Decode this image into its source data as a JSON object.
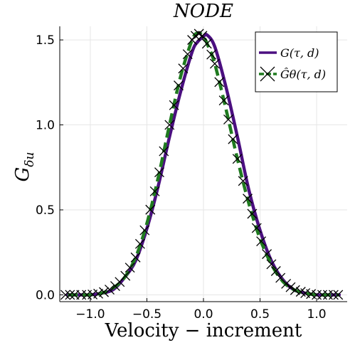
{
  "chart_data": {
    "type": "line",
    "title": "NODE",
    "xlabel": "Velocity − increment",
    "ylabel_main": "G",
    "ylabel_sub": "δu",
    "xlim": [
      -1.27,
      1.27
    ],
    "ylim": [
      -0.04,
      1.58
    ],
    "xticks": [
      -1.0,
      -0.5,
      0.0,
      0.5,
      1.0
    ],
    "xtick_labels": [
      "−1.0",
      "−0.5",
      "0.0",
      "0.5",
      "1.0"
    ],
    "yticks": [
      0.0,
      0.5,
      1.0,
      1.5
    ],
    "ytick_labels": [
      "0.0",
      "0.5",
      "1.0",
      "1.5"
    ],
    "grid": true,
    "legend_position": "top-right",
    "series": [
      {
        "name": "G(τ, d)",
        "color": "#4b0f80",
        "style": "solid",
        "x": [
          -1.2,
          -1.1,
          -1.0,
          -0.9,
          -0.8,
          -0.7,
          -0.6,
          -0.5,
          -0.4,
          -0.3,
          -0.2,
          -0.1,
          -0.05,
          0.0,
          0.03,
          0.1,
          0.2,
          0.3,
          0.4,
          0.5,
          0.6,
          0.7,
          0.8,
          0.9,
          1.0,
          1.1,
          1.2
        ],
        "y": [
          0.0,
          0.0,
          0.0,
          0.01,
          0.03,
          0.1,
          0.2,
          0.39,
          0.64,
          0.93,
          1.2,
          1.43,
          1.49,
          1.52,
          1.53,
          1.46,
          1.22,
          0.93,
          0.62,
          0.38,
          0.2,
          0.09,
          0.03,
          0.01,
          0.0,
          0.0,
          0.0
        ]
      },
      {
        "name": "Ĝθ(τ, d)",
        "color": "#1f7a1f",
        "style": "dashed",
        "marker": "x",
        "marker_color": "#000000",
        "x": [
          -1.2,
          -1.1,
          -1.0,
          -0.9,
          -0.8,
          -0.7,
          -0.6,
          -0.5,
          -0.4,
          -0.3,
          -0.2,
          -0.1,
          -0.05,
          0.0,
          0.05,
          0.1,
          0.2,
          0.3,
          0.4,
          0.5,
          0.6,
          0.7,
          0.8,
          0.9,
          1.0,
          1.1,
          1.2
        ],
        "y": [
          0.0,
          0.0,
          0.0,
          0.01,
          0.04,
          0.1,
          0.22,
          0.42,
          0.69,
          1.0,
          1.29,
          1.5,
          1.54,
          1.52,
          1.45,
          1.36,
          1.09,
          0.8,
          0.54,
          0.33,
          0.18,
          0.08,
          0.03,
          0.01,
          0.0,
          0.0,
          0.0
        ]
      }
    ],
    "marker_x": [
      -1.22,
      -1.18,
      -1.14,
      -1.08,
      -1.03,
      -0.98,
      -0.93,
      -0.88,
      -0.83,
      -0.78,
      -0.74,
      -0.69,
      -0.65,
      -0.6,
      -0.56,
      -0.52,
      -0.47,
      -0.43,
      -0.39,
      -0.35,
      -0.3,
      -0.26,
      -0.22,
      -0.18,
      -0.14,
      -0.1,
      -0.07,
      -0.04,
      -0.01,
      0.03,
      0.07,
      0.1,
      0.14,
      0.18,
      0.22,
      0.26,
      0.3,
      0.35,
      0.39,
      0.43,
      0.47,
      0.51,
      0.56,
      0.6,
      0.64,
      0.68,
      0.73,
      0.77,
      0.81,
      0.86,
      0.9,
      0.95,
      1.0,
      1.05,
      1.1,
      1.15,
      1.19
    ]
  }
}
